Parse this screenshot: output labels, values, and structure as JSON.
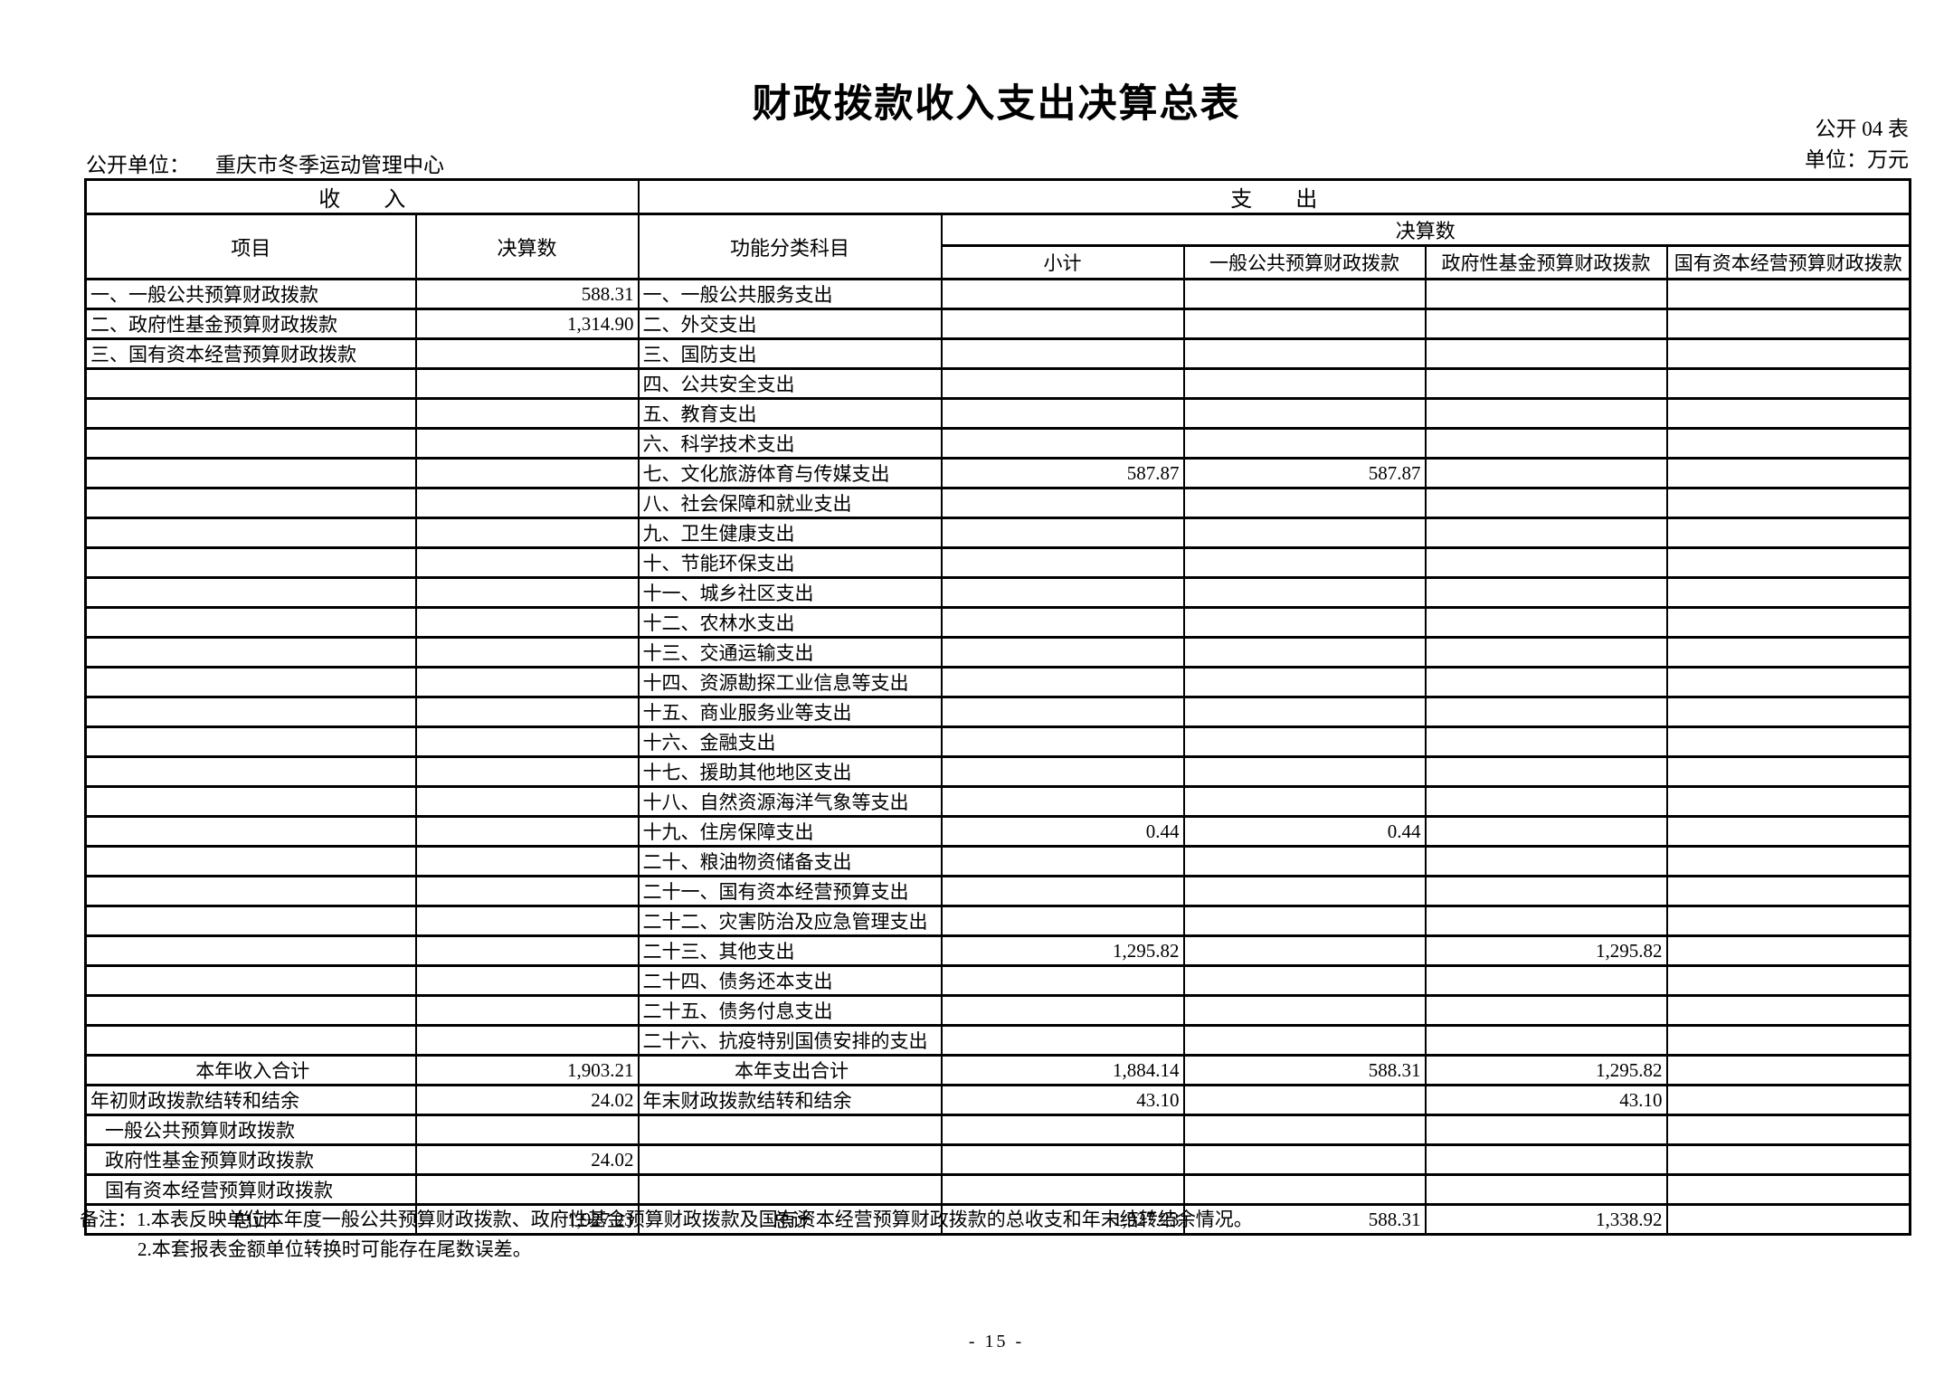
{
  "title": "财政拨款收入支出决算总表",
  "meta": {
    "table_code": "公开 04 表",
    "unit": "单位：万元",
    "org_label": "公开单位：",
    "org_name": "重庆市冬季运动管理中心"
  },
  "table": {
    "header": {
      "income_section": "收　　入",
      "expense_section": "支　　出",
      "income_item": "项目",
      "income_amount": "决算数",
      "expense_item": "功能分类科目",
      "expense_amount_group": "决算数",
      "expense_subtotal": "小计",
      "expense_general_budget": "一般公共预算财政拨款",
      "expense_gov_fund": "政府性基金预算财政拨款",
      "expense_state_capital": "国有资本经营预算财政拨款"
    },
    "body_rows": [
      {
        "income": {
          "label": "一、一般公共预算财政拨款",
          "style": "",
          "value": "588.31"
        },
        "expense": {
          "label": "一、一般公共服务支出",
          "style": "",
          "subtotal": "",
          "general": "",
          "gov_fund": "",
          "state_capital": ""
        }
      },
      {
        "income": {
          "label": "二、政府性基金预算财政拨款",
          "style": "",
          "value": "1,314.90"
        },
        "expense": {
          "label": "二、外交支出",
          "style": "",
          "subtotal": "",
          "general": "",
          "gov_fund": "",
          "state_capital": ""
        }
      },
      {
        "income": {
          "label": "三、国有资本经营预算财政拨款",
          "style": "",
          "value": ""
        },
        "expense": {
          "label": "三、国防支出",
          "style": "",
          "subtotal": "",
          "general": "",
          "gov_fund": "",
          "state_capital": ""
        }
      },
      {
        "income": {
          "label": "",
          "style": "",
          "value": ""
        },
        "expense": {
          "label": "四、公共安全支出",
          "style": "",
          "subtotal": "",
          "general": "",
          "gov_fund": "",
          "state_capital": ""
        }
      },
      {
        "income": {
          "label": "",
          "style": "",
          "value": ""
        },
        "expense": {
          "label": "五、教育支出",
          "style": "",
          "subtotal": "",
          "general": "",
          "gov_fund": "",
          "state_capital": ""
        }
      },
      {
        "income": {
          "label": "",
          "style": "",
          "value": ""
        },
        "expense": {
          "label": "六、科学技术支出",
          "style": "",
          "subtotal": "",
          "general": "",
          "gov_fund": "",
          "state_capital": ""
        }
      },
      {
        "income": {
          "label": "",
          "style": "",
          "value": ""
        },
        "expense": {
          "label": "七、文化旅游体育与传媒支出",
          "style": "",
          "subtotal": "587.87",
          "general": "587.87",
          "gov_fund": "",
          "state_capital": ""
        }
      },
      {
        "income": {
          "label": "",
          "style": "",
          "value": ""
        },
        "expense": {
          "label": "八、社会保障和就业支出",
          "style": "",
          "subtotal": "",
          "general": "",
          "gov_fund": "",
          "state_capital": ""
        }
      },
      {
        "income": {
          "label": "",
          "style": "",
          "value": ""
        },
        "expense": {
          "label": "九、卫生健康支出",
          "style": "",
          "subtotal": "",
          "general": "",
          "gov_fund": "",
          "state_capital": ""
        }
      },
      {
        "income": {
          "label": "",
          "style": "",
          "value": ""
        },
        "expense": {
          "label": "十、节能环保支出",
          "style": "",
          "subtotal": "",
          "general": "",
          "gov_fund": "",
          "state_capital": ""
        }
      },
      {
        "income": {
          "label": "",
          "style": "",
          "value": ""
        },
        "expense": {
          "label": "十一、城乡社区支出",
          "style": "",
          "subtotal": "",
          "general": "",
          "gov_fund": "",
          "state_capital": ""
        }
      },
      {
        "income": {
          "label": "",
          "style": "",
          "value": ""
        },
        "expense": {
          "label": "十二、农林水支出",
          "style": "",
          "subtotal": "",
          "general": "",
          "gov_fund": "",
          "state_capital": ""
        }
      },
      {
        "income": {
          "label": "",
          "style": "",
          "value": ""
        },
        "expense": {
          "label": "十三、交通运输支出",
          "style": "",
          "subtotal": "",
          "general": "",
          "gov_fund": "",
          "state_capital": ""
        }
      },
      {
        "income": {
          "label": "",
          "style": "",
          "value": ""
        },
        "expense": {
          "label": "十四、资源勘探工业信息等支出",
          "style": "",
          "subtotal": "",
          "general": "",
          "gov_fund": "",
          "state_capital": ""
        }
      },
      {
        "income": {
          "label": "",
          "style": "",
          "value": ""
        },
        "expense": {
          "label": "十五、商业服务业等支出",
          "style": "",
          "subtotal": "",
          "general": "",
          "gov_fund": "",
          "state_capital": ""
        }
      },
      {
        "income": {
          "label": "",
          "style": "",
          "value": ""
        },
        "expense": {
          "label": "十六、金融支出",
          "style": "",
          "subtotal": "",
          "general": "",
          "gov_fund": "",
          "state_capital": ""
        }
      },
      {
        "income": {
          "label": "",
          "style": "",
          "value": ""
        },
        "expense": {
          "label": "十七、援助其他地区支出",
          "style": "",
          "subtotal": "",
          "general": "",
          "gov_fund": "",
          "state_capital": ""
        }
      },
      {
        "income": {
          "label": "",
          "style": "",
          "value": ""
        },
        "expense": {
          "label": "十八、自然资源海洋气象等支出",
          "style": "",
          "subtotal": "",
          "general": "",
          "gov_fund": "",
          "state_capital": ""
        }
      },
      {
        "income": {
          "label": "",
          "style": "",
          "value": ""
        },
        "expense": {
          "label": "十九、住房保障支出",
          "style": "",
          "subtotal": "0.44",
          "general": "0.44",
          "gov_fund": "",
          "state_capital": ""
        }
      },
      {
        "income": {
          "label": "",
          "style": "",
          "value": ""
        },
        "expense": {
          "label": "二十、粮油物资储备支出",
          "style": "",
          "subtotal": "",
          "general": "",
          "gov_fund": "",
          "state_capital": ""
        }
      },
      {
        "income": {
          "label": "",
          "style": "",
          "value": ""
        },
        "expense": {
          "label": "二十一、国有资本经营预算支出",
          "style": "",
          "subtotal": "",
          "general": "",
          "gov_fund": "",
          "state_capital": ""
        }
      },
      {
        "income": {
          "label": "",
          "style": "",
          "value": ""
        },
        "expense": {
          "label": "二十二、灾害防治及应急管理支出",
          "style": "",
          "subtotal": "",
          "general": "",
          "gov_fund": "",
          "state_capital": ""
        }
      },
      {
        "income": {
          "label": "",
          "style": "",
          "value": ""
        },
        "expense": {
          "label": "二十三、其他支出",
          "style": "",
          "subtotal": "1,295.82",
          "general": "",
          "gov_fund": "1,295.82",
          "state_capital": ""
        }
      },
      {
        "income": {
          "label": "",
          "style": "",
          "value": ""
        },
        "expense": {
          "label": "二十四、债务还本支出",
          "style": "",
          "subtotal": "",
          "general": "",
          "gov_fund": "",
          "state_capital": ""
        }
      },
      {
        "income": {
          "label": "",
          "style": "",
          "value": ""
        },
        "expense": {
          "label": "二十五、债务付息支出",
          "style": "",
          "subtotal": "",
          "general": "",
          "gov_fund": "",
          "state_capital": ""
        }
      },
      {
        "income": {
          "label": "",
          "style": "",
          "value": ""
        },
        "expense": {
          "label": "二十六、抗疫特别国债安排的支出",
          "style": "",
          "subtotal": "",
          "general": "",
          "gov_fund": "",
          "state_capital": ""
        }
      },
      {
        "income": {
          "label": "本年收入合计",
          "style": "total",
          "value": "1,903.21"
        },
        "expense": {
          "label": "本年支出合计",
          "style": "total",
          "subtotal": "1,884.14",
          "general": "588.31",
          "gov_fund": "1,295.82",
          "state_capital": ""
        }
      },
      {
        "income": {
          "label": "年初财政拨款结转和结余",
          "style": "",
          "value": "24.02"
        },
        "expense": {
          "label": "年末财政拨款结转和结余",
          "style": "",
          "subtotal": "43.10",
          "general": "",
          "gov_fund": "43.10",
          "state_capital": ""
        }
      },
      {
        "income": {
          "label": "一般公共预算财政拨款",
          "style": "indent",
          "value": ""
        },
        "expense": {
          "label": "",
          "style": "",
          "subtotal": "",
          "general": "",
          "gov_fund": "",
          "state_capital": ""
        }
      },
      {
        "income": {
          "label": "政府性基金预算财政拨款",
          "style": "indent",
          "value": "24.02"
        },
        "expense": {
          "label": "",
          "style": "",
          "subtotal": "",
          "general": "",
          "gov_fund": "",
          "state_capital": ""
        }
      },
      {
        "income": {
          "label": "国有资本经营预算财政拨款",
          "style": "indent",
          "value": ""
        },
        "expense": {
          "label": "",
          "style": "",
          "subtotal": "",
          "general": "",
          "gov_fund": "",
          "state_capital": ""
        }
      },
      {
        "income": {
          "label": "总计",
          "style": "total",
          "value": "1,927.23"
        },
        "expense": {
          "label": "总计",
          "style": "total",
          "subtotal": "1,927.23",
          "general": "588.31",
          "gov_fund": "1,338.92",
          "state_capital": ""
        }
      }
    ]
  },
  "notes": {
    "line1": "备注：1.本表反映单位本年度一般公共预算财政拨款、政府性基金预算财政拨款及国有资本经营预算财政拨款的总收支和年末结转结余情况。",
    "line2": "2.本套报表金额单位转换时可能存在尾数误差。"
  },
  "footer": {
    "page_number": "- 15 -"
  }
}
